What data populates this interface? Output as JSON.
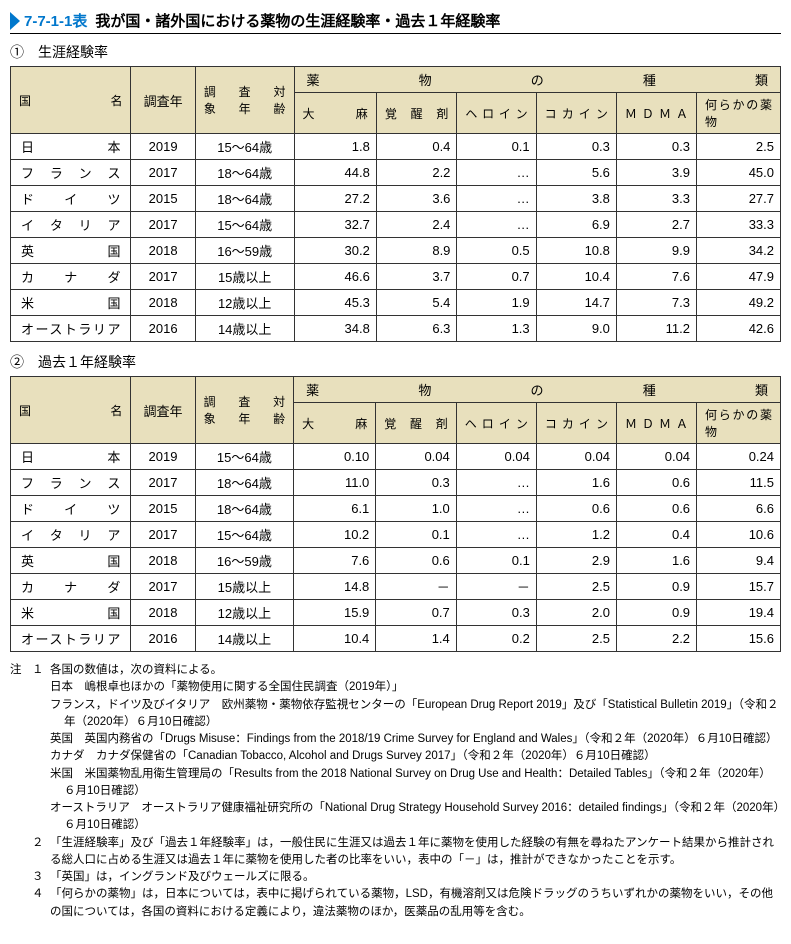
{
  "title": {
    "code": "7-7-1-1表",
    "text": "我が国・諸外国における薬物の生涯経験率・過去１年経験率"
  },
  "section1": {
    "label": "①　生涯経験率",
    "header_country": "国　　名",
    "header_year": "調査年",
    "header_age": "調　査　対　象年齢",
    "header_drug_types": "薬　　物　　の　　種　　類",
    "drugs": [
      "大　　麻",
      "覚　醒　剤",
      "ヘロイン",
      "コカイン",
      "ＭＤＭＡ",
      "何らかの薬　　　物"
    ],
    "rows": [
      {
        "country": "日　　　　本",
        "year": "2019",
        "age": "15～64歳",
        "v": [
          "1.8",
          "0.4",
          "0.1",
          "0.3",
          "0.3",
          "2.5"
        ]
      },
      {
        "country": "フ ラ ン ス",
        "year": "2017",
        "age": "18～64歳",
        "v": [
          "44.8",
          "2.2",
          "…",
          "5.6",
          "3.9",
          "45.0"
        ]
      },
      {
        "country": "ド　イ　ツ",
        "year": "2015",
        "age": "18～64歳",
        "v": [
          "27.2",
          "3.6",
          "…",
          "3.8",
          "3.3",
          "27.7"
        ]
      },
      {
        "country": "イ タ リ ア",
        "year": "2017",
        "age": "15～64歳",
        "v": [
          "32.7",
          "2.4",
          "…",
          "6.9",
          "2.7",
          "33.3"
        ]
      },
      {
        "country": "英　　　　国",
        "year": "2018",
        "age": "16～59歳",
        "v": [
          "30.2",
          "8.9",
          "0.5",
          "10.8",
          "9.9",
          "34.2"
        ]
      },
      {
        "country": "カ　ナ　ダ",
        "year": "2017",
        "age": "15歳以上",
        "v": [
          "46.6",
          "3.7",
          "0.7",
          "10.4",
          "7.6",
          "47.9"
        ]
      },
      {
        "country": "米　　　　国",
        "year": "2018",
        "age": "12歳以上",
        "v": [
          "45.3",
          "5.4",
          "1.9",
          "14.7",
          "7.3",
          "49.2"
        ]
      },
      {
        "country": "オーストラリア",
        "year": "2016",
        "age": "14歳以上",
        "v": [
          "34.8",
          "6.3",
          "1.3",
          "9.0",
          "11.2",
          "42.6"
        ]
      }
    ]
  },
  "section2": {
    "label": "②　過去１年経験率",
    "header_country": "国　　名",
    "header_year": "調査年",
    "header_age": "調　査　対　象年齢",
    "header_drug_types": "薬　　物　　の　　種　　類",
    "drugs": [
      "大　　麻",
      "覚　醒　剤",
      "ヘロイン",
      "コカイン",
      "ＭＤＭＡ",
      "何らかの薬　　　物"
    ],
    "rows": [
      {
        "country": "日　　　　本",
        "year": "2019",
        "age": "15～64歳",
        "v": [
          "0.10",
          "0.04",
          "0.04",
          "0.04",
          "0.04",
          "0.24"
        ]
      },
      {
        "country": "フ ラ ン ス",
        "year": "2017",
        "age": "18～64歳",
        "v": [
          "11.0",
          "0.3",
          "…",
          "1.6",
          "0.6",
          "11.5"
        ]
      },
      {
        "country": "ド　イ　ツ",
        "year": "2015",
        "age": "18～64歳",
        "v": [
          "6.1",
          "1.0",
          "…",
          "0.6",
          "0.6",
          "6.6"
        ]
      },
      {
        "country": "イ タ リ ア",
        "year": "2017",
        "age": "15～64歳",
        "v": [
          "10.2",
          "0.1",
          "…",
          "1.2",
          "0.4",
          "10.6"
        ]
      },
      {
        "country": "英　　　　国",
        "year": "2018",
        "age": "16～59歳",
        "v": [
          "7.6",
          "0.6",
          "0.1",
          "2.9",
          "1.6",
          "9.4"
        ]
      },
      {
        "country": "カ　ナ　ダ",
        "year": "2017",
        "age": "15歳以上",
        "v": [
          "14.8",
          "－",
          "－",
          "2.5",
          "0.9",
          "15.7"
        ]
      },
      {
        "country": "米　　　　国",
        "year": "2018",
        "age": "12歳以上",
        "v": [
          "15.9",
          "0.7",
          "0.3",
          "2.0",
          "0.9",
          "19.4"
        ]
      },
      {
        "country": "オーストラリア",
        "year": "2016",
        "age": "14歳以上",
        "v": [
          "10.4",
          "1.4",
          "0.2",
          "2.5",
          "2.2",
          "15.6"
        ]
      }
    ]
  },
  "notes": {
    "label": "注",
    "items": [
      {
        "num": "１",
        "lines": [
          "各国の数値は，次の資料による。",
          "日本　嶋根卓也ほかの「薬物使用に関する全国住民調査（2019年）」",
          "フランス，ドイツ及びイタリア　欧州薬物・薬物依存監視センターの「European Drug Report 2019」及び「Statistical Bulletin 2019」（令和２年（2020年）６月10日確認）",
          "英国　英国内務省の「Drugs Misuse：Findings from the 2018/19 Crime Survey for England and Wales」（令和２年（2020年）６月10日確認）",
          "カナダ　カナダ保健省の「Canadian Tobacco, Alcohol and Drugs Survey 2017」（令和２年（2020年）６月10日確認）",
          "米国　米国薬物乱用衛生管理局の「Results from the 2018 National Survey on Drug Use and Health：Detailed Tables」（令和２年（2020年）６月10日確認）",
          "オーストラリア　オーストラリア健康福祉研究所の「National Drug Strategy Household Survey 2016：detailed findings」（令和２年（2020年）６月10日確認）"
        ]
      },
      {
        "num": "２",
        "lines": [
          "「生涯経験率」及び「過去１年経験率」は，一般住民に生涯又は過去１年に薬物を使用した経験の有無を尋ねたアンケート結果から推計される総人口に占める生涯又は過去１年に薬物を使用した者の比率をいい，表中の「－」は，推計ができなかったことを示す。"
        ]
      },
      {
        "num": "３",
        "lines": [
          "「英国」は，イングランド及びウェールズに限る。"
        ]
      },
      {
        "num": "４",
        "lines": [
          "「何らかの薬物」は，日本については，表中に掲げられている薬物，LSD，有機溶剤又は危険ドラッグのうちいずれかの薬物をいい，その他の国については，各国の資料における定義により，違法薬物のほか，医薬品の乱用等を含む。"
        ]
      }
    ]
  }
}
